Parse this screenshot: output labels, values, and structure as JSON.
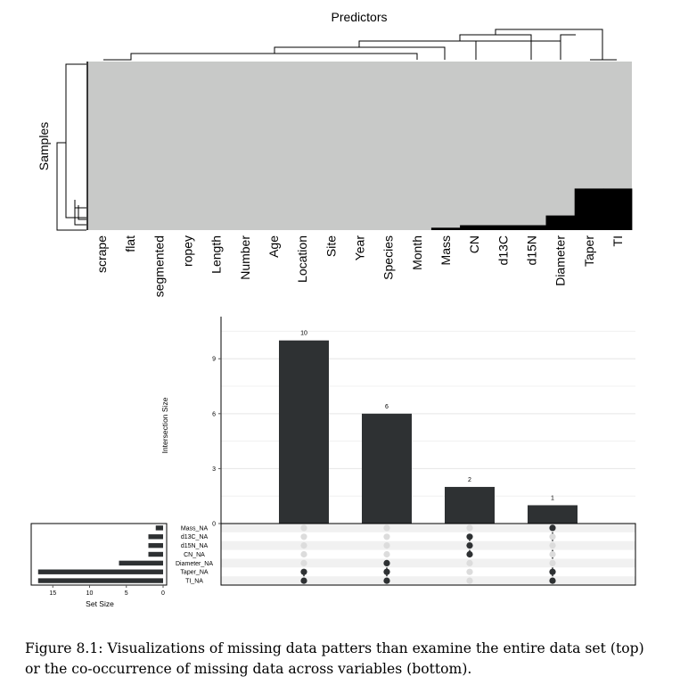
{
  "figure": {
    "caption": "Figure 8.1: Visualizations of missing data patters than examine the entire data set (top) or the co-occurrence of missing data across variables (bottom)."
  },
  "colors": {
    "present": "#c8c9c8",
    "missing": "#000000",
    "bar": "#2e3133",
    "dot_on": "#2e3133",
    "dot_off": "#dcdcdc"
  },
  "chart_data": [
    {
      "type": "heatmap",
      "title": "Predictors",
      "ylabel": "Samples",
      "columns": [
        "scrape",
        "flat",
        "segmented",
        "ropey",
        "Length",
        "Number",
        "Age",
        "Location",
        "Site",
        "Year",
        "Species",
        "Month",
        "Mass",
        "CN",
        "d13C",
        "d15N",
        "Diameter",
        "Taper",
        "TI"
      ],
      "missing_counts": [
        0,
        0,
        0,
        0,
        0,
        0,
        0,
        0,
        0,
        0,
        0,
        0,
        1,
        2,
        2,
        2,
        6,
        17,
        17
      ],
      "cells": {
        "present": "gray",
        "missing": "black"
      },
      "dendrograms": {
        "columns": true,
        "rows": true
      }
    },
    {
      "type": "bar",
      "subtype": "upset",
      "ylabel": "Intersection Size",
      "yticks": [
        0,
        3,
        6,
        9
      ],
      "ylim": [
        0,
        11.3
      ],
      "intersections": [
        {
          "size": 10,
          "size_label": "10",
          "sets": [
            "Taper_NA",
            "TI_NA"
          ]
        },
        {
          "size": 6,
          "size_label": "6",
          "sets": [
            "Diameter_NA",
            "Taper_NA",
            "TI_NA"
          ]
        },
        {
          "size": 2,
          "size_label": "2",
          "sets": [
            "d15N_NA",
            "d13C_NA",
            "CN_NA"
          ]
        },
        {
          "size": 1,
          "size_label": "1",
          "sets": [
            "Mass_NA",
            "Taper_NA",
            "TI_NA"
          ]
        }
      ],
      "sets": [
        "Mass_NA",
        "d13C_NA",
        "d15N_NA",
        "CN_NA",
        "Diameter_NA",
        "Taper_NA",
        "TI_NA"
      ],
      "set_sizes": [
        1,
        2,
        2,
        2,
        6,
        17,
        17
      ],
      "set_size_axis": {
        "label": "Set Size",
        "ticks": [
          "15",
          "10",
          "5",
          "0"
        ],
        "tick_values": [
          15,
          10,
          5,
          0
        ],
        "xlim": [
          17.7,
          0
        ]
      }
    }
  ]
}
